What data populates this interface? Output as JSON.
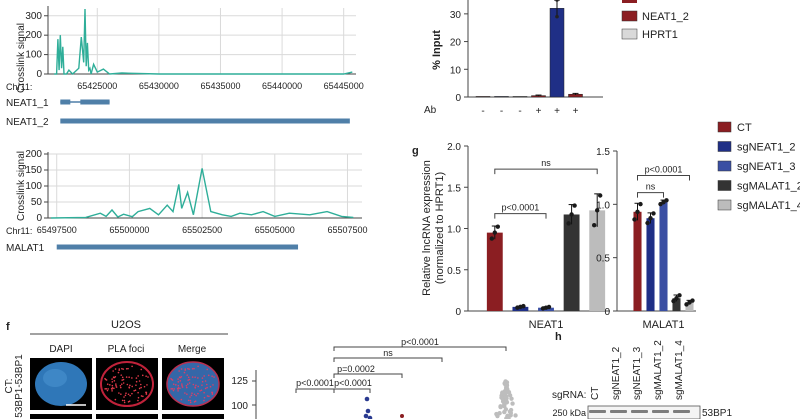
{
  "colors": {
    "teal": "#2fae99",
    "gene": "#4f7fa8",
    "red": "#8b1e22",
    "navy": "#1f2f86",
    "blue": "#3a4fa3",
    "dark": "#333333",
    "grey": "#bcbcbc",
    "pla_dot": "#2a3a90"
  },
  "chart_data": [
    {
      "id": "neat1_track",
      "type": "line",
      "ylabel": "Crosslink signal",
      "chrom_label": "Chr11:",
      "yticks": [
        "0",
        "100",
        "200",
        "300"
      ],
      "ylim": [
        0,
        340
      ],
      "xticks": [
        "65425000",
        "65430000",
        "65435000",
        "65440000",
        "65445000"
      ],
      "xlim": [
        65421000,
        65446000
      ],
      "x": [
        65421500,
        65421700,
        65421800,
        65421900,
        65422000,
        65422100,
        65422200,
        65422300,
        65422500,
        65422700,
        65423000,
        65423500,
        65423700,
        65423900,
        65424000,
        65424100,
        65424200,
        65424300,
        65424400,
        65424500,
        65424700,
        65425000,
        65425500,
        65426000,
        65427000,
        65430000,
        65435000,
        65440000,
        65445000,
        65445700
      ],
      "y": [
        0,
        0,
        180,
        20,
        200,
        30,
        140,
        0,
        0,
        20,
        0,
        30,
        190,
        60,
        335,
        40,
        160,
        20,
        30,
        0,
        50,
        10,
        25,
        0,
        5,
        0,
        0,
        0,
        0,
        10
      ],
      "genes": [
        {
          "label": "NEAT1_1",
          "start": 65422000,
          "end": 65426000
        },
        {
          "label": "NEAT1_2",
          "start": 65422000,
          "end": 65445500
        }
      ]
    },
    {
      "id": "malat1_track",
      "type": "line",
      "ylabel": "Crosslink signal",
      "chrom_label": "Chr11:",
      "yticks": [
        "0",
        "50",
        "100",
        "150",
        "200"
      ],
      "ylim": [
        0,
        200
      ],
      "xticks": [
        "65497500",
        "65500000",
        "65502500",
        "65505000",
        "65507500"
      ],
      "xlim": [
        65497200,
        65508000
      ],
      "x": [
        65497300,
        65498500,
        65499000,
        65499200,
        65499400,
        65499600,
        65499800,
        65500100,
        65500300,
        65500700,
        65501000,
        65501300,
        65501500,
        65501700,
        65501800,
        65502000,
        65502200,
        65502500,
        65502800,
        65503200,
        65503500,
        65503800,
        65504200,
        65504600,
        65505000,
        65505500,
        65506200,
        65506800,
        65507300,
        65507700
      ],
      "y": [
        0,
        2,
        15,
        5,
        25,
        3,
        12,
        4,
        20,
        30,
        10,
        40,
        20,
        105,
        30,
        80,
        10,
        155,
        20,
        10,
        5,
        15,
        10,
        20,
        5,
        15,
        10,
        20,
        5,
        2
      ],
      "genes": [
        {
          "label": "MALAT1",
          "start": 65497500,
          "end": 65505800
        }
      ]
    },
    {
      "id": "rip_input",
      "type": "bar",
      "ylabel": "% Input",
      "yticks": [
        "0",
        "10",
        "20",
        "30"
      ],
      "ylim": [
        0,
        35
      ],
      "row_label": "Ab",
      "ab_marks": [
        "-",
        "-",
        "-",
        "+",
        "+",
        "+"
      ],
      "values": [
        0.2,
        0.2,
        0.2,
        0.5,
        32,
        1
      ],
      "errors": [
        0,
        0,
        0,
        0.2,
        3,
        0.3
      ],
      "bar_colors": [
        "#8b1e22",
        "#1f2f86",
        "#bcbcbc",
        "#8b1e22",
        "#1f2f86",
        "#8b1e22"
      ],
      "legend": [
        {
          "label": "NEAT1_2",
          "color": "#8b1e22"
        },
        {
          "label": "HPRT1",
          "color": "#d9d9d9"
        }
      ]
    },
    {
      "id": "lncrna_expression",
      "type": "bar",
      "ylabel": [
        "Relative lncRNA expression",
        "(normalized to HPRT1)"
      ],
      "yticks": [
        "0",
        "0.5",
        "1.0",
        "1.5",
        "2.0"
      ],
      "series": [
        {
          "name": "CT",
          "color": "#8b1e22"
        },
        {
          "name": "sgNEAT1_2",
          "color": "#1f2f86"
        },
        {
          "name": "sgNEAT1_3",
          "color": "#3a4fa3"
        },
        {
          "name": "sgMALAT1_2",
          "color": "#333333"
        },
        {
          "name": "sgMALAT1_4",
          "color": "#bcbcbc"
        }
      ],
      "panels": [
        {
          "category": "NEAT1",
          "ylim": [
            0,
            2.0
          ],
          "values": [
            0.95,
            0.05,
            0.04,
            1.17,
            1.22
          ],
          "errors": [
            0.08,
            0.01,
            0.01,
            0.12,
            0.2
          ],
          "annotations": [
            {
              "text": "ns",
              "from": 0,
              "to": 4,
              "level": 1.72
            },
            {
              "text": "p<0.0001",
              "from": 0,
              "to": 2,
              "level": 1.18
            }
          ]
        },
        {
          "category": "MALAT1",
          "ylim": [
            0,
            1.5
          ],
          "values": [
            0.93,
            0.87,
            1.02,
            0.12,
            0.08
          ],
          "errors": [
            0.08,
            0.05,
            0.02,
            0.03,
            0.02
          ],
          "annotations": [
            {
              "text": "p<0.0001",
              "from": 0,
              "to": 4,
              "level": 1.27
            },
            {
              "text": "ns",
              "from": 0,
              "to": 2,
              "level": 1.11
            }
          ]
        }
      ]
    },
    {
      "id": "pla_foci",
      "type": "scatter",
      "yticks": [
        "100",
        "125"
      ],
      "annotations": [
        "p<0.0001",
        "ns",
        "p=0.0002",
        "p<0.0001",
        "p<0.0001"
      ]
    }
  ],
  "panel_f": {
    "letter": "f",
    "title": "U2OS",
    "cols": [
      "DAPI",
      "PLA foci",
      "Merge"
    ],
    "row_label_1": "CT:",
    "row_label_2": "53BP1-53BP1"
  },
  "panel_g": {
    "letter": "g"
  },
  "panel_h": {
    "letter": "h",
    "label": "sgRNA:",
    "lanes": [
      "CT",
      "sgNEAT1_2",
      "sgNEAT1_3",
      "sgMALAT1_2",
      "sgMALAT1_4"
    ],
    "marker": "250 kDa",
    "band": "53BP1"
  }
}
